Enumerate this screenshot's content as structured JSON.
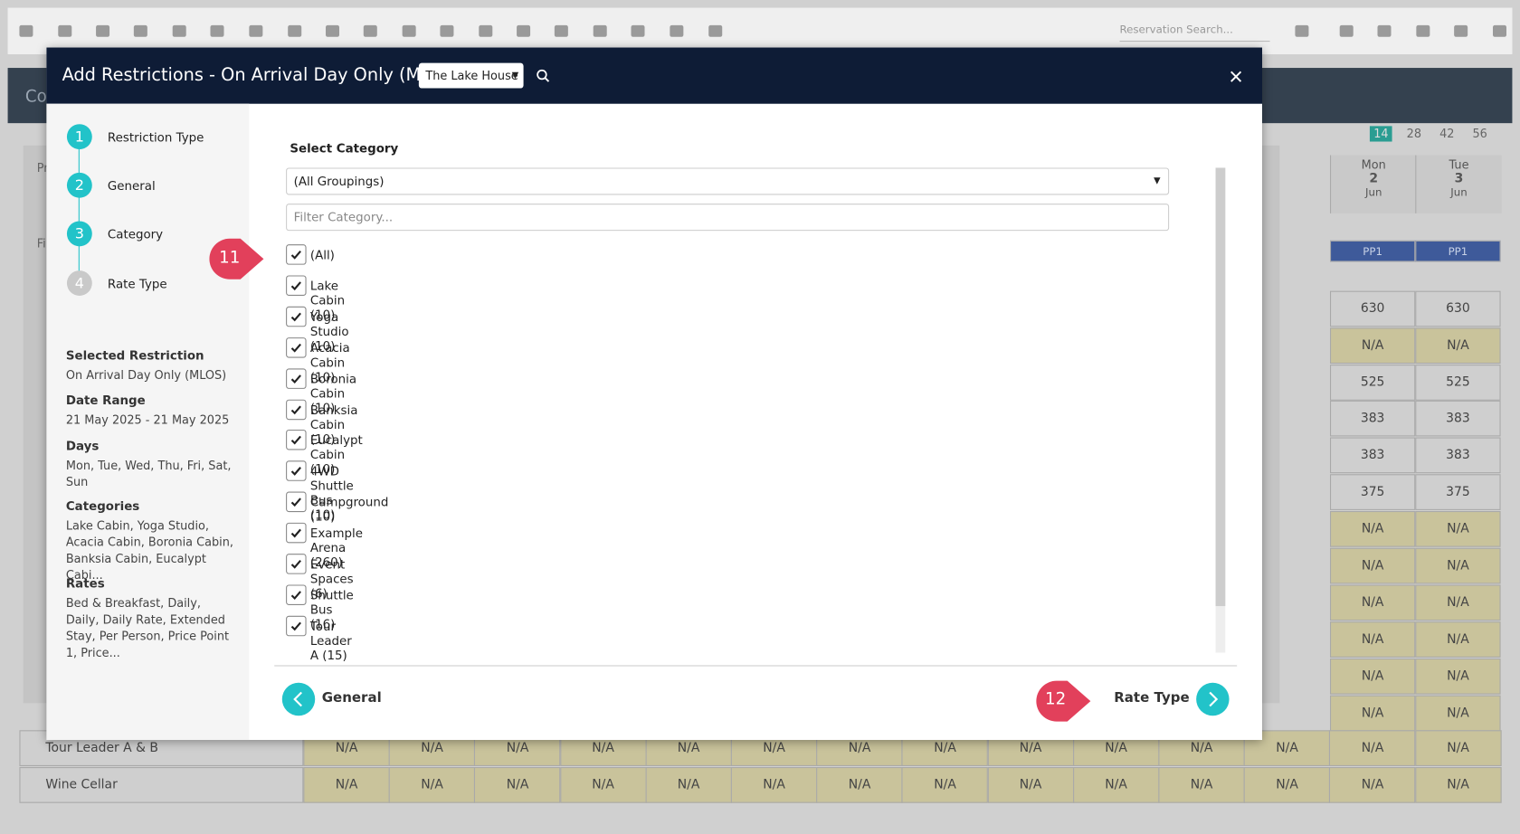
{
  "toolbar": {
    "search_placeholder": "Reservation Search..."
  },
  "background": {
    "title": "Co",
    "side_labels": [
      "Pr",
      "Fi"
    ],
    "ranges": [
      "14",
      "28",
      "42",
      "56"
    ],
    "columns": [
      {
        "day": "Mon",
        "date": "2",
        "month": "Jun"
      },
      {
        "day": "Tue",
        "date": "3",
        "month": "Jun"
      }
    ],
    "rows": [
      [
        "PP1",
        "PP1"
      ],
      [
        "630",
        "630"
      ],
      [
        "N/A",
        "N/A"
      ],
      [
        "525",
        "525"
      ],
      [
        "383",
        "383"
      ],
      [
        "383",
        "383"
      ],
      [
        "375",
        "375"
      ],
      [
        "N/A",
        "N/A"
      ],
      [
        "N/A",
        "N/A"
      ],
      [
        "N/A",
        "N/A"
      ],
      [
        "N/A",
        "N/A"
      ],
      [
        "N/A",
        "N/A"
      ],
      [
        "N/A",
        "N/A"
      ]
    ],
    "bottom_rows": [
      {
        "name": "Tour Leader A & B",
        "cells": [
          "N/A",
          "N/A",
          "N/A",
          "N/A",
          "N/A",
          "N/A",
          "N/A",
          "N/A",
          "N/A",
          "N/A",
          "N/A",
          "N/A",
          "N/A",
          "N/A"
        ]
      },
      {
        "name": "Wine Cellar",
        "cells": [
          "N/A",
          "N/A",
          "N/A",
          "N/A",
          "N/A",
          "N/A",
          "N/A",
          "N/A",
          "N/A",
          "N/A",
          "N/A",
          "N/A",
          "N/A",
          "N/A"
        ]
      }
    ]
  },
  "modal": {
    "title": "Add Restrictions - On Arrival Day Only (MLOS)",
    "property": "The Lake House",
    "steps": [
      {
        "number": "1",
        "label": "Restriction Type"
      },
      {
        "number": "2",
        "label": "General"
      },
      {
        "number": "3",
        "label": "Category"
      },
      {
        "number": "4",
        "label": "Rate Type"
      }
    ],
    "summary": [
      {
        "heading": "Selected Restriction",
        "value": "On Arrival Day Only (MLOS)"
      },
      {
        "heading": "Date Range",
        "value": "21 May 2025 - 21 May 2025"
      },
      {
        "heading": "Days",
        "value": "Mon, Tue, Wed, Thu, Fri, Sat, Sun"
      },
      {
        "heading": "Categories",
        "value": "Lake Cabin, Yoga Studio, Acacia Cabin, Boronia Cabin, Banksia Cabin, Eucalypt Cabi..."
      },
      {
        "heading": "Rates",
        "value": "Bed & Breakfast, Daily, Daily, Daily Rate, Extended Stay, Per Person, Price Point 1, Price..."
      }
    ],
    "section_title": "Select Category",
    "grouping": "(All Groupings)",
    "filter_placeholder": "Filter Category...",
    "categories": [
      "(All)",
      "Lake Cabin (10)",
      "Yoga Studio (10)",
      "Acacia Cabin (10)",
      "Boronia Cabin (10)",
      "Banksia Cabin (10)",
      "Eucalypt Cabin (10)",
      "4WD Shuttle Bus (10)",
      "Campground (10)",
      "Example Arena (260)",
      "Event Spaces (6)",
      "Shuttle Bus (16)",
      "Tour Leader A (15)"
    ],
    "back_label": "General",
    "next_label": "Rate Type"
  },
  "callouts": [
    "11",
    "12"
  ]
}
